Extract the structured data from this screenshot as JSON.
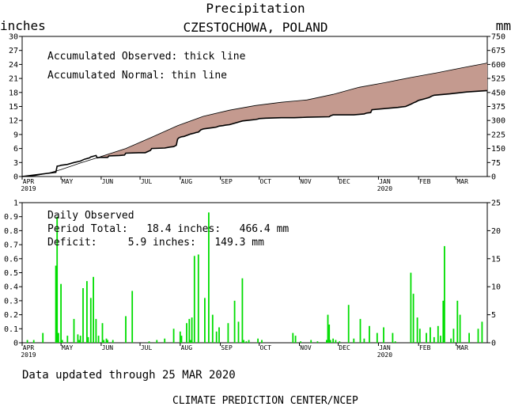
{
  "title": "Precipitation",
  "subtitle": "CZESTOCHOWA, POLAND",
  "chart_data": [
    {
      "type": "area",
      "title": "Precipitation",
      "subtitle": "CZESTOCHOWA, POLAND",
      "left_unit": "inches",
      "right_unit": "mm",
      "ylim": [
        0,
        30
      ],
      "ylim_right": [
        0,
        750
      ],
      "y_ticks": [
        0,
        3,
        6,
        9,
        12,
        15,
        18,
        21,
        24,
        27,
        30
      ],
      "y_ticks_right": [
        0,
        75,
        150,
        225,
        300,
        375,
        450,
        525,
        600,
        675,
        750
      ],
      "annotations": [
        "Accumulated Observed: thick line",
        "Accumulated Normal: thin line"
      ],
      "months": [
        "APR",
        "MAY",
        "JUN",
        "JUL",
        "AUG",
        "SEP",
        "OCT",
        "NOV",
        "DEC",
        "JAN",
        "FEB",
        "MAR"
      ],
      "year_labels": [
        {
          "month": "APR",
          "year": "2019"
        },
        {
          "month": "JAN",
          "year": "2020"
        }
      ],
      "x_domain_days": [
        0,
        359
      ],
      "deficit_color": "#c49a8f",
      "series": [
        {
          "name": "Accumulated Observed",
          "x": [
            0,
            26,
            27,
            29,
            30,
            35,
            40,
            45,
            48,
            52,
            53,
            57,
            58,
            60,
            63,
            66,
            67,
            75,
            79,
            80,
            90,
            95,
            99,
            100,
            110,
            114,
            117,
            119,
            120,
            121,
            123,
            125,
            127,
            129,
            130,
            133,
            134,
            136,
            138,
            140,
            148,
            150,
            152,
            155,
            157,
            160,
            170,
            180,
            182,
            183,
            188,
            200,
            210,
            220,
            237,
            238,
            240,
            256,
            264,
            266,
            269,
            270,
            290,
            296,
            300,
            303,
            304,
            306,
            310,
            314,
            316,
            318,
            330,
            343,
            359
          ],
          "values": [
            0.0,
            0.9,
            2.2,
            2.3,
            2.4,
            2.6,
            3.0,
            3.3,
            3.7,
            4.0,
            4.2,
            4.5,
            4.0,
            4.1,
            4.1,
            4.1,
            4.4,
            4.5,
            4.6,
            5.0,
            5.1,
            5.1,
            5.6,
            6.0,
            6.1,
            6.3,
            6.4,
            6.7,
            8.0,
            8.3,
            8.5,
            8.6,
            8.8,
            9.0,
            9.1,
            9.3,
            9.4,
            9.5,
            10.0,
            10.2,
            10.5,
            10.6,
            10.8,
            10.9,
            11.0,
            11.1,
            11.9,
            12.2,
            12.3,
            12.4,
            12.5,
            12.6,
            12.6,
            12.7,
            12.8,
            13.0,
            13.2,
            13.2,
            13.4,
            13.6,
            13.7,
            14.3,
            14.8,
            15.0,
            15.5,
            15.9,
            16.0,
            16.3,
            16.6,
            16.9,
            17.2,
            17.4,
            17.7,
            18.1,
            18.4
          ]
        },
        {
          "name": "Accumulated Normal",
          "x": [
            0,
            10,
            20,
            30,
            45,
            60,
            80,
            100,
            120,
            140,
            160,
            180,
            200,
            220,
            240,
            260,
            280,
            300,
            320,
            340,
            359
          ],
          "values": [
            0.0,
            0.2,
            0.7,
            1.5,
            2.9,
            4.2,
            6.0,
            8.4,
            10.9,
            12.9,
            14.2,
            15.2,
            15.9,
            16.4,
            17.6,
            19.1,
            20.1,
            21.2,
            22.2,
            23.3,
            24.3
          ]
        }
      ]
    },
    {
      "type": "bar",
      "title": "Daily Observed",
      "ylim": [
        0,
        1
      ],
      "ylim_right": [
        0,
        25
      ],
      "y_ticks": [
        0,
        0.1,
        0.2,
        0.3,
        0.4,
        0.5,
        0.6,
        0.7,
        0.8,
        0.9,
        1
      ],
      "y_ticks_right": [
        0,
        5,
        10,
        15,
        20,
        25
      ],
      "annotations": [
        "Daily Observed",
        "Period Total:   18.4 inches:   466.4 mm",
        "Deficit:     5.9 inches:   149.3 mm"
      ],
      "months": [
        "APR",
        "MAY",
        "JUN",
        "JUL",
        "AUG",
        "SEP",
        "OCT",
        "NOV",
        "DEC",
        "JAN",
        "FEB",
        "MAR"
      ],
      "year_labels": [
        {
          "month": "APR",
          "year": "2019"
        },
        {
          "month": "JAN",
          "year": "2020"
        }
      ],
      "x_domain_days": [
        0,
        359
      ],
      "bar_color": "#00dd00",
      "series": [
        {
          "name": "Daily Observed",
          "x": [
            4,
            9,
            16,
            26,
            27,
            28,
            30,
            31,
            35,
            40,
            43,
            44,
            45,
            47,
            50,
            51,
            53,
            55,
            57,
            59,
            62,
            63,
            65,
            66,
            70,
            80,
            85,
            98,
            104,
            110,
            117,
            122,
            123,
            127,
            129,
            130,
            131,
            133,
            136,
            141,
            144,
            147,
            150,
            152,
            159,
            164,
            167,
            170,
            171,
            173,
            175,
            182,
            185,
            209,
            211,
            215,
            223,
            228,
            235,
            236,
            237,
            238,
            240,
            242,
            245,
            252,
            256,
            261,
            264,
            268,
            274,
            279,
            286,
            288,
            300,
            302,
            305,
            307,
            312,
            315,
            318,
            321,
            323,
            325,
            326,
            331,
            333,
            336,
            338,
            345,
            352,
            355
          ],
          "values": [
            0.02,
            0.02,
            0.07,
            0.55,
            0.9,
            0.07,
            0.42,
            0.02,
            0.05,
            0.17,
            0.06,
            0.02,
            0.05,
            0.39,
            0.44,
            0.04,
            0.32,
            0.47,
            0.17,
            0.05,
            0.14,
            0.02,
            0.03,
            0.02,
            0.02,
            0.19,
            0.37,
            0.01,
            0.02,
            0.03,
            0.1,
            0.08,
            0.05,
            0.14,
            0.17,
            0.02,
            0.18,
            0.62,
            0.63,
            0.32,
            0.93,
            0.2,
            0.08,
            0.11,
            0.14,
            0.3,
            0.15,
            0.46,
            0.02,
            0.01,
            0.02,
            0.03,
            0.02,
            0.07,
            0.05,
            0.01,
            0.02,
            0.01,
            0.02,
            0.2,
            0.13,
            0.02,
            0.03,
            0.02,
            0.01,
            0.27,
            0.03,
            0.17,
            0.03,
            0.12,
            0.07,
            0.11,
            0.07,
            0.01,
            0.5,
            0.35,
            0.18,
            0.1,
            0.07,
            0.11,
            0.04,
            0.12,
            0.05,
            0.3,
            0.69,
            0.03,
            0.1,
            0.3,
            0.2,
            0.07,
            0.1,
            0.15
          ]
        }
      ]
    }
  ],
  "footer": {
    "updated": "Data updated through 25 MAR 2020",
    "credit": "CLIMATE PREDICTION CENTER/NCEP"
  }
}
